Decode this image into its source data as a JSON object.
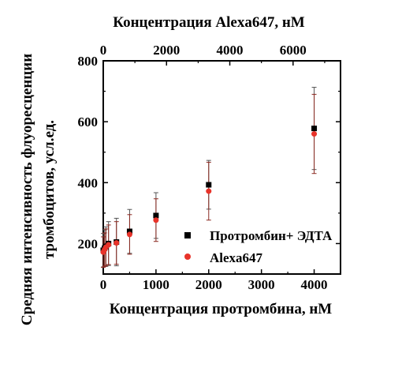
{
  "chart_data": {
    "type": "scatter",
    "title": "",
    "xlabel": "Концентрация протромбина, нМ",
    "x2label": "Концентрация Alexa647, нМ",
    "ylabel_line1": "Средняя интенсивность флуоресценции",
    "ylabel_line2": "тромбоцитов, усл.ед.",
    "xlim": [
      0,
      4500
    ],
    "x2lim": [
      0,
      7500
    ],
    "ylim": [
      100,
      800
    ],
    "xticks": [
      0,
      1000,
      2000,
      3000,
      4000
    ],
    "x2ticks": [
      0,
      2000,
      4000,
      6000
    ],
    "yticks": [
      200,
      400,
      600,
      800
    ],
    "grid": false,
    "legend_position": "lower-right",
    "series": [
      {
        "name": "Протромбин+ ЭДТА",
        "marker": "square",
        "color": "#000000",
        "errcolor": "#555555",
        "x": [
          0,
          25,
          50,
          100,
          250,
          500,
          1000,
          2000,
          4000
        ],
        "y": [
          178,
          185,
          190,
          200,
          205,
          240,
          292,
          393,
          578
        ],
        "err": [
          55,
          60,
          65,
          72,
          78,
          72,
          75,
          80,
          135
        ]
      },
      {
        "name": "Alexa647",
        "marker": "circle",
        "color": "#e8332a",
        "errcolor": "#8b2a22",
        "x": [
          0,
          25,
          50,
          100,
          250,
          500,
          1000,
          2000,
          4000
        ],
        "y": [
          172,
          180,
          188,
          196,
          202,
          230,
          277,
          372,
          560
        ],
        "err": [
          50,
          55,
          60,
          65,
          70,
          65,
          70,
          95,
          130
        ]
      }
    ]
  }
}
